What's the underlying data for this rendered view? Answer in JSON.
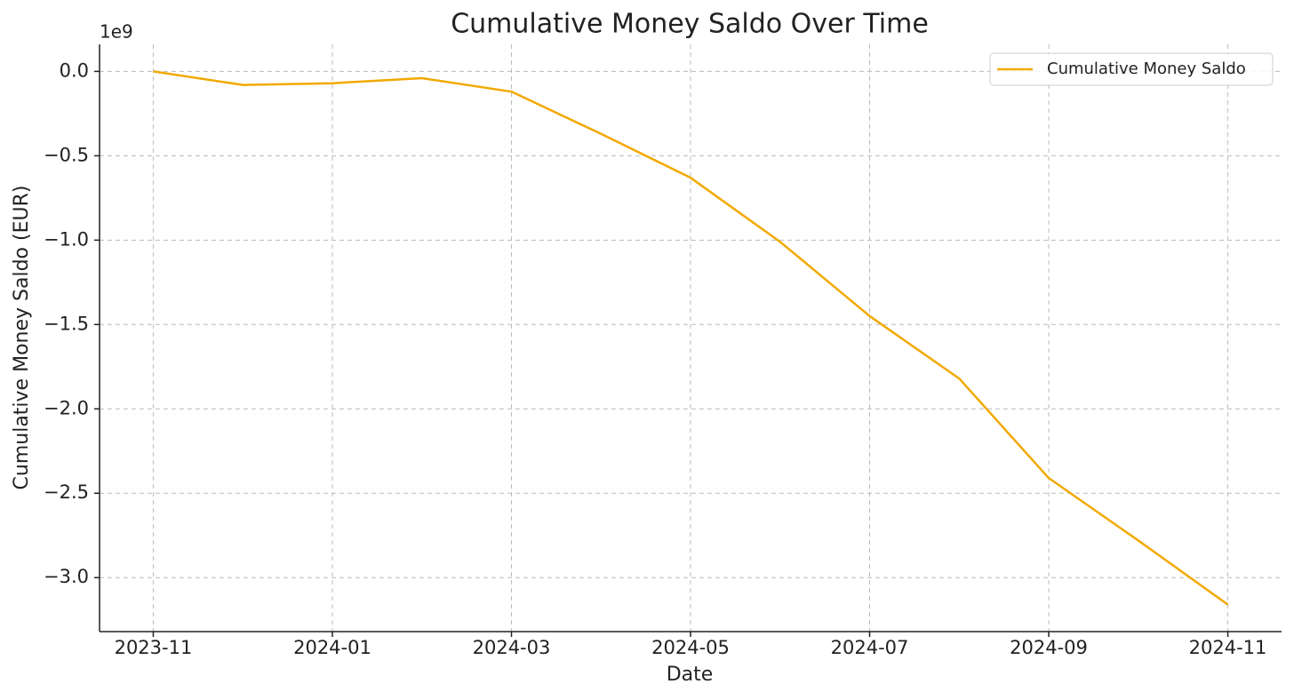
{
  "chart_data": {
    "type": "line",
    "title": "Cumulative Money Saldo Over Time",
    "x_label": "Date",
    "y_label": "Cumulative Money Saldo (EUR)",
    "y_offset_label": "1e9",
    "x": [
      "2023-11",
      "2023-12",
      "2024-01",
      "2024-02",
      "2024-03",
      "2024-04",
      "2024-05",
      "2024-06",
      "2024-07",
      "2024-08",
      "2024-09",
      "2024-10",
      "2024-11"
    ],
    "series": [
      {
        "name": "Cumulative Money Saldo",
        "color": "#f2a900",
        "values": [
          0.0,
          -0.08,
          -0.07,
          -0.04,
          -0.12,
          -0.37,
          -0.63,
          -1.01,
          -1.45,
          -1.82,
          -2.41,
          -2.78,
          -3.16
        ]
      }
    ],
    "ylim": [
      -3.32,
      0.16
    ],
    "yticks": [
      {
        "value": 0,
        "label": "0.0"
      },
      {
        "value": -0.5,
        "label": "−0.5"
      },
      {
        "value": -1.0,
        "label": "−1.0"
      },
      {
        "value": -1.5,
        "label": "−1.5"
      },
      {
        "value": -2.0,
        "label": "−2.0"
      },
      {
        "value": -2.5,
        "label": "−2.5"
      },
      {
        "value": -3.0,
        "label": "−3.0"
      }
    ],
    "xticks": [
      "2023-11",
      "2024-01",
      "2024-03",
      "2024-05",
      "2024-07",
      "2024-09",
      "2024-11"
    ],
    "grid": true,
    "legend": "upper-right"
  }
}
